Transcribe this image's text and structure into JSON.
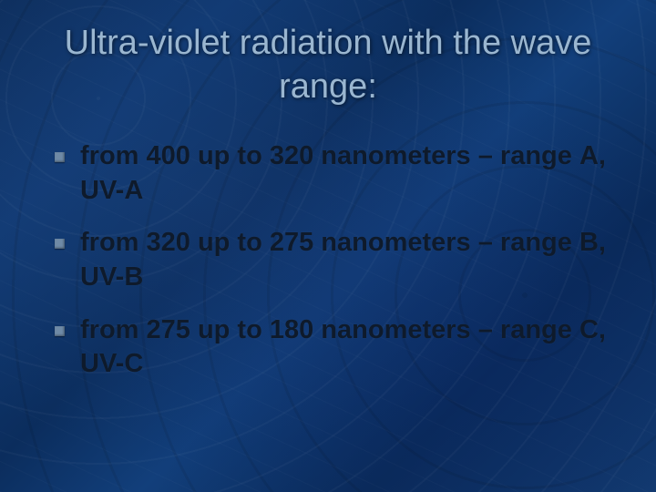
{
  "slide": {
    "title": "Ultra-violet radiation with the wave range:",
    "title_color": "#9ab6d0",
    "title_fontsize": 38,
    "background_gradient": [
      "#0e2f5e",
      "#113a73",
      "#0b2d5d",
      "#123f7b",
      "#0a2a58",
      "#133c72"
    ],
    "bullet_marker_color": "#6f8aa6",
    "bullet_text_color": "#0e1a2b",
    "bullet_fontsize": 29,
    "bullets": [
      {
        "text": "from 400 up to 320 nanometers – range А, UV-A"
      },
      {
        "text": "from 320 up to 275 nanometers – range В, UV-В"
      },
      {
        "text": "from 275 up to 180 nanometers – range С, UV-С"
      }
    ]
  }
}
